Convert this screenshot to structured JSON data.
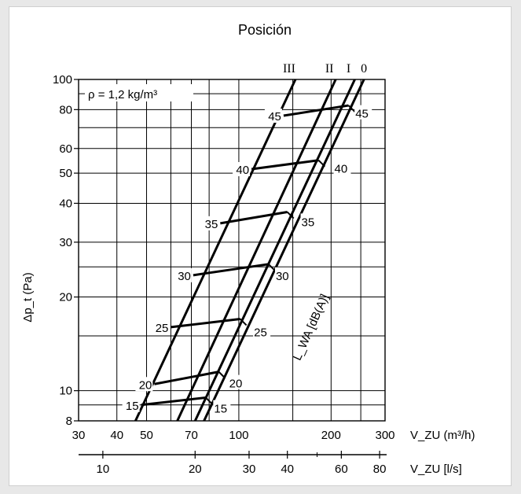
{
  "chart_data": {
    "type": "line",
    "title": "Posición",
    "annotation": "ρ  = 1,2 kg/m³",
    "ylabel": "Δp_t (Pa)",
    "xlabel_top": "V_ZU (m³/h)",
    "xlabel_bottom": "V_ZU [l/s]",
    "curve_axis_label": "L_WA [dB(A)]",
    "y_scale": "log",
    "x_scale": "log",
    "ylim": [
      8,
      100
    ],
    "xlim_m3h": [
      30,
      300
    ],
    "xlim_ls": [
      8.33,
      83.3
    ],
    "y_ticks": [
      "8",
      "10",
      "20",
      "30",
      "40",
      "50",
      "60",
      "80",
      "100"
    ],
    "x_ticks_m3h": [
      "30",
      "40",
      "50",
      "70",
      "100",
      "200",
      "300"
    ],
    "x_ticks_ls": [
      "10",
      "20",
      "30",
      "40",
      "60",
      "80"
    ],
    "position_series": [
      {
        "name": "III",
        "x": [
          46,
          153
        ],
        "y": [
          8,
          100
        ]
      },
      {
        "name": "II",
        "x": [
          63,
          207
        ],
        "y": [
          8,
          100
        ]
      },
      {
        "name": "I",
        "x": [
          72,
          239
        ],
        "y": [
          8,
          100
        ]
      },
      {
        "name": "0",
        "x": [
          77,
          256
        ],
        "y": [
          8,
          100
        ]
      }
    ],
    "noise_lines": [
      {
        "label": "45",
        "label_side": "left",
        "x": [
          140,
          228
        ],
        "y": [
          76.5,
          82.5
        ]
      },
      {
        "label": "40",
        "label_side": "left",
        "x": [
          110,
          182
        ],
        "y": [
          51.5,
          55
        ]
      },
      {
        "label": "35",
        "label_side": "left",
        "x": [
          87,
          144
        ],
        "y": [
          34.5,
          37.5
        ]
      },
      {
        "label": "30",
        "label_side": "left",
        "x": [
          71,
          125
        ],
        "y": [
          23.5,
          25.5
        ]
      },
      {
        "label": "25",
        "label_side": "left",
        "x": [
          60,
          101
        ],
        "y": [
          16,
          17
        ]
      },
      {
        "label": "20",
        "label_side": "left",
        "x": [
          53,
          86
        ],
        "y": [
          10.5,
          11.5
        ]
      },
      {
        "label": "15",
        "label_side": "left",
        "x": [
          48,
          78
        ],
        "y": [
          9,
          9.5
        ]
      },
      {
        "label": "45",
        "label_side": "right",
        "x": [
          240
        ],
        "y": [
          78
        ]
      },
      {
        "label": "40",
        "label_side": "right",
        "x": [
          205
        ],
        "y": [
          52
        ]
      },
      {
        "label": "35",
        "label_side": "right",
        "x": [
          160
        ],
        "y": [
          35
        ]
      },
      {
        "label": "30",
        "label_side": "right",
        "x": [
          132
        ],
        "y": [
          23.5
        ]
      },
      {
        "label": "25",
        "label_side": "right",
        "x": [
          112
        ],
        "y": [
          15.5
        ]
      },
      {
        "label": "20",
        "label_side": "right",
        "x": [
          93
        ],
        "y": [
          10.6
        ]
      },
      {
        "label": "15",
        "label_side": "right",
        "x": [
          83
        ],
        "y": [
          8.8
        ]
      }
    ]
  }
}
